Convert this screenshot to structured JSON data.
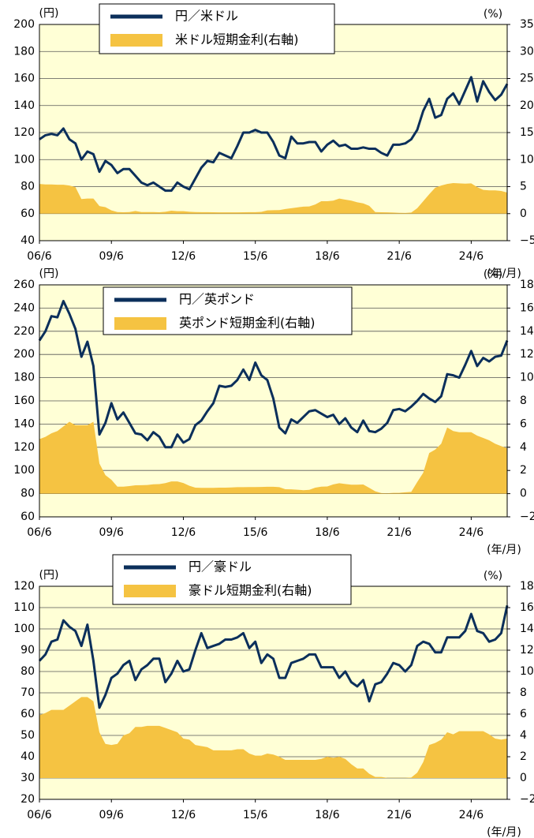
{
  "chart_data": [
    {
      "type": "line",
      "y_label": "(円)",
      "y2_label": "(%)",
      "x_label": "(年/月)",
      "legend": "upper center",
      "grid": true,
      "xlim": [
        "2006-06",
        "2025-12"
      ],
      "xticks": [
        {
          "value": "2006-06",
          "label": "06/6"
        },
        {
          "value": "2009-06",
          "label": "09/6"
        },
        {
          "value": "2012-06",
          "label": "12/6"
        },
        {
          "value": "2015-06",
          "label": "15/6"
        },
        {
          "value": "2018-06",
          "label": "18/6"
        },
        {
          "value": "2021-06",
          "label": "21/6"
        },
        {
          "value": "2024-06",
          "label": "24/6"
        }
      ],
      "ylim": [
        40,
        200
      ],
      "yticks": [
        40,
        60,
        80,
        100,
        120,
        140,
        160,
        180,
        200
      ],
      "y2lim": [
        -5,
        35
      ],
      "y2ticks": [
        {
          "value": -5,
          "label": "−5"
        },
        0,
        5,
        10,
        15,
        20,
        25,
        30,
        35
      ],
      "x": [
        "2006-06",
        "2006-09",
        "2006-12",
        "2007-03",
        "2007-06",
        "2007-09",
        "2007-12",
        "2008-03",
        "2008-06",
        "2008-09",
        "2008-12",
        "2009-03",
        "2009-06",
        "2009-09",
        "2009-12",
        "2010-03",
        "2010-06",
        "2010-09",
        "2010-12",
        "2011-03",
        "2011-06",
        "2011-09",
        "2011-12",
        "2012-03",
        "2012-06",
        "2012-09",
        "2012-12",
        "2013-03",
        "2013-06",
        "2013-09",
        "2013-12",
        "2014-03",
        "2014-06",
        "2014-09",
        "2014-12",
        "2015-03",
        "2015-06",
        "2015-09",
        "2015-12",
        "2016-03",
        "2016-06",
        "2016-09",
        "2016-12",
        "2017-03",
        "2017-06",
        "2017-09",
        "2017-12",
        "2018-03",
        "2018-06",
        "2018-09",
        "2018-12",
        "2019-03",
        "2019-06",
        "2019-09",
        "2019-12",
        "2020-03",
        "2020-06",
        "2020-09",
        "2020-12",
        "2021-03",
        "2021-06",
        "2021-09",
        "2021-12",
        "2022-03",
        "2022-06",
        "2022-09",
        "2022-12",
        "2023-03",
        "2023-06",
        "2023-09",
        "2023-12",
        "2024-03",
        "2024-06",
        "2024-09",
        "2024-12",
        "2025-03",
        "2025-06",
        "2025-09",
        "2025-12"
      ],
      "series": [
        {
          "name": "円／米ドル",
          "type": "line",
          "color": "#0b2f5b",
          "values": [
            115,
            118,
            119,
            118,
            123,
            115,
            112,
            100,
            106,
            104,
            91,
            99,
            96,
            90,
            93,
            93,
            88,
            83,
            81,
            83,
            80,
            77,
            77,
            83,
            80,
            78,
            86,
            94,
            99,
            98,
            105,
            103,
            101,
            110,
            120,
            120,
            122,
            120,
            120,
            113,
            103,
            101,
            117,
            112,
            112,
            113,
            113,
            106,
            111,
            114,
            110,
            111,
            108,
            108,
            109,
            108,
            108,
            105,
            103,
            111,
            111,
            112,
            115,
            122,
            136,
            145,
            131,
            133,
            145,
            149,
            141,
            151,
            161,
            143,
            158,
            150,
            144,
            148,
            156
          ]
        },
        {
          "name": "米ドル短期金利(右軸)",
          "type": "area",
          "axis": "y2",
          "color": "#f5c342",
          "values": [
            5.5,
            5.4,
            5.4,
            5.35,
            5.35,
            5.2,
            4.9,
            2.7,
            2.8,
            2.8,
            1.4,
            1.2,
            0.6,
            0.3,
            0.25,
            0.3,
            0.5,
            0.3,
            0.3,
            0.3,
            0.25,
            0.35,
            0.55,
            0.45,
            0.45,
            0.35,
            0.3,
            0.28,
            0.27,
            0.25,
            0.24,
            0.23,
            0.23,
            0.23,
            0.25,
            0.27,
            0.28,
            0.33,
            0.6,
            0.63,
            0.65,
            0.85,
            1.0,
            1.15,
            1.3,
            1.33,
            1.7,
            2.3,
            2.3,
            2.4,
            2.8,
            2.6,
            2.4,
            2.1,
            1.9,
            1.45,
            0.3,
            0.25,
            0.24,
            0.2,
            0.15,
            0.13,
            0.2,
            1.0,
            2.3,
            3.6,
            4.8,
            5.2,
            5.5,
            5.65,
            5.6,
            5.55,
            5.6,
            4.9,
            4.4,
            4.3,
            4.3,
            4.2,
            3.9
          ]
        }
      ]
    },
    {
      "type": "line",
      "y_label": "(円)",
      "y2_label": "(%)",
      "x_label": "(年/月)",
      "legend": "upper center",
      "grid": true,
      "xlim": [
        "2006-06",
        "2025-12"
      ],
      "xticks": [
        {
          "value": "2006-06",
          "label": "06/6"
        },
        {
          "value": "2009-06",
          "label": "09/6"
        },
        {
          "value": "2012-06",
          "label": "12/6"
        },
        {
          "value": "2015-06",
          "label": "15/6"
        },
        {
          "value": "2018-06",
          "label": "18/6"
        },
        {
          "value": "2021-06",
          "label": "21/6"
        },
        {
          "value": "2024-06",
          "label": "24/6"
        }
      ],
      "ylim": [
        60,
        260
      ],
      "yticks": [
        60,
        80,
        100,
        120,
        140,
        160,
        180,
        200,
        220,
        240,
        260
      ],
      "y2lim": [
        -2,
        18
      ],
      "y2ticks": [
        {
          "value": -2,
          "label": "−2"
        },
        0,
        2,
        4,
        6,
        8,
        10,
        12,
        14,
        16,
        18
      ],
      "x": [
        "2006-06",
        "2006-09",
        "2006-12",
        "2007-03",
        "2007-06",
        "2007-09",
        "2007-12",
        "2008-03",
        "2008-06",
        "2008-09",
        "2008-12",
        "2009-03",
        "2009-06",
        "2009-09",
        "2009-12",
        "2010-03",
        "2010-06",
        "2010-09",
        "2010-12",
        "2011-03",
        "2011-06",
        "2011-09",
        "2011-12",
        "2012-03",
        "2012-06",
        "2012-09",
        "2012-12",
        "2013-03",
        "2013-06",
        "2013-09",
        "2013-12",
        "2014-03",
        "2014-06",
        "2014-09",
        "2014-12",
        "2015-03",
        "2015-06",
        "2015-09",
        "2015-12",
        "2016-03",
        "2016-06",
        "2016-09",
        "2016-12",
        "2017-03",
        "2017-06",
        "2017-09",
        "2017-12",
        "2018-03",
        "2018-06",
        "2018-09",
        "2018-12",
        "2019-03",
        "2019-06",
        "2019-09",
        "2019-12",
        "2020-03",
        "2020-06",
        "2020-09",
        "2020-12",
        "2021-03",
        "2021-06",
        "2021-09",
        "2021-12",
        "2022-03",
        "2022-06",
        "2022-09",
        "2022-12",
        "2023-03",
        "2023-06",
        "2023-09",
        "2023-12",
        "2024-03",
        "2024-06",
        "2024-09",
        "2024-12",
        "2025-03",
        "2025-06",
        "2025-09",
        "2025-12"
      ],
      "series": [
        {
          "name": "円／英ポンド",
          "type": "line",
          "color": "#0b2f5b",
          "values": [
            212,
            220,
            233,
            232,
            246,
            235,
            222,
            198,
            211,
            190,
            131,
            141,
            158,
            144,
            150,
            141,
            132,
            131,
            126,
            133,
            129,
            120,
            120,
            131,
            124,
            127,
            139,
            143,
            151,
            158,
            173,
            172,
            173,
            178,
            187,
            178,
            193,
            182,
            178,
            162,
            137,
            132,
            144,
            141,
            146,
            151,
            152,
            149,
            146,
            148,
            140,
            145,
            137,
            133,
            143,
            134,
            133,
            136,
            141,
            152,
            153,
            151,
            155,
            160,
            166,
            162,
            159,
            164,
            183,
            182,
            180,
            191,
            203,
            190,
            197,
            194,
            198,
            199,
            212
          ]
        },
        {
          "name": "英ポンド短期金利(右軸)",
          "type": "area",
          "axis": "y2",
          "color": "#f5c342",
          "values": [
            4.7,
            4.9,
            5.2,
            5.4,
            5.8,
            6.2,
            5.9,
            5.9,
            5.9,
            6.2,
            2.6,
            1.6,
            1.2,
            0.6,
            0.6,
            0.65,
            0.72,
            0.73,
            0.75,
            0.81,
            0.82,
            0.91,
            1.05,
            1.05,
            0.92,
            0.68,
            0.52,
            0.5,
            0.5,
            0.5,
            0.52,
            0.52,
            0.53,
            0.56,
            0.56,
            0.57,
            0.57,
            0.58,
            0.59,
            0.59,
            0.56,
            0.38,
            0.37,
            0.34,
            0.3,
            0.33,
            0.52,
            0.6,
            0.62,
            0.8,
            0.9,
            0.83,
            0.77,
            0.77,
            0.79,
            0.5,
            0.2,
            0.05,
            0.03,
            0.07,
            0.07,
            0.12,
            0.15,
            1.0,
            1.8,
            3.5,
            3.8,
            4.3,
            5.7,
            5.4,
            5.3,
            5.3,
            5.3,
            5.0,
            4.8,
            4.6,
            4.3,
            4.1,
            3.9
          ]
        }
      ]
    },
    {
      "type": "line",
      "y_label": "(円)",
      "y2_label": "(%)",
      "x_label": "(年/月)",
      "legend": "upper center",
      "grid": true,
      "xlim": [
        "2006-06",
        "2025-12"
      ],
      "xticks": [
        {
          "value": "2006-06",
          "label": "06/6"
        },
        {
          "value": "2009-06",
          "label": "09/6"
        },
        {
          "value": "2012-06",
          "label": "12/6"
        },
        {
          "value": "2015-06",
          "label": "15/6"
        },
        {
          "value": "2018-06",
          "label": "18/6"
        },
        {
          "value": "2021-06",
          "label": "21/6"
        },
        {
          "value": "2024-06",
          "label": "24/6"
        }
      ],
      "ylim": [
        20,
        120
      ],
      "yticks": [
        20,
        30,
        40,
        50,
        60,
        70,
        80,
        90,
        100,
        110,
        120
      ],
      "y2lim": [
        -2,
        18
      ],
      "y2ticks": [
        {
          "value": -2,
          "label": "−2"
        },
        0,
        2,
        4,
        6,
        8,
        10,
        12,
        14,
        16,
        18
      ],
      "x": [
        "2006-06",
        "2006-09",
        "2006-12",
        "2007-03",
        "2007-06",
        "2007-09",
        "2007-12",
        "2008-03",
        "2008-06",
        "2008-09",
        "2008-12",
        "2009-03",
        "2009-06",
        "2009-09",
        "2009-12",
        "2010-03",
        "2010-06",
        "2010-09",
        "2010-12",
        "2011-03",
        "2011-06",
        "2011-09",
        "2011-12",
        "2012-03",
        "2012-06",
        "2012-09",
        "2012-12",
        "2013-03",
        "2013-06",
        "2013-09",
        "2013-12",
        "2014-03",
        "2014-06",
        "2014-09",
        "2014-12",
        "2015-03",
        "2015-06",
        "2015-09",
        "2015-12",
        "2016-03",
        "2016-06",
        "2016-09",
        "2016-12",
        "2017-03",
        "2017-06",
        "2017-09",
        "2017-12",
        "2018-03",
        "2018-06",
        "2018-09",
        "2018-12",
        "2019-03",
        "2019-06",
        "2019-09",
        "2019-12",
        "2020-03",
        "2020-06",
        "2020-09",
        "2020-12",
        "2021-03",
        "2021-06",
        "2021-09",
        "2021-12",
        "2022-03",
        "2022-06",
        "2022-09",
        "2022-12",
        "2023-03",
        "2023-06",
        "2023-09",
        "2023-12",
        "2024-03",
        "2024-06",
        "2024-09",
        "2024-12",
        "2025-03",
        "2025-06",
        "2025-09",
        "2025-12"
      ],
      "series": [
        {
          "name": "円／豪ドル",
          "type": "line",
          "color": "#0b2f5b",
          "values": [
            85,
            88,
            94,
            95,
            104,
            101,
            99,
            92,
            102,
            85,
            63,
            69,
            77,
            79,
            83,
            85,
            76,
            81,
            83,
            86,
            86,
            75,
            79,
            85,
            80,
            81,
            90,
            98,
            91,
            92,
            93,
            95,
            95,
            96,
            98,
            91,
            94,
            84,
            88,
            86,
            77,
            77,
            84,
            85,
            86,
            88,
            88,
            82,
            82,
            82,
            77,
            80,
            75,
            73,
            76,
            66,
            74,
            75,
            79,
            84,
            83,
            80,
            83,
            92,
            94,
            93,
            89,
            89,
            96,
            96,
            96,
            99,
            107,
            99,
            98,
            94,
            95,
            98,
            111
          ]
        },
        {
          "name": "豪ドル短期金利(右軸)",
          "type": "area",
          "axis": "y2",
          "color": "#f5c342",
          "values": [
            5.9,
            6.1,
            6.4,
            6.4,
            6.4,
            6.8,
            7.2,
            7.6,
            7.6,
            7.2,
            4.3,
            3.2,
            3.1,
            3.2,
            4.0,
            4.2,
            4.8,
            4.8,
            4.9,
            4.9,
            4.9,
            4.7,
            4.5,
            4.3,
            3.7,
            3.6,
            3.1,
            3.0,
            2.9,
            2.6,
            2.6,
            2.6,
            2.6,
            2.7,
            2.7,
            2.3,
            2.1,
            2.1,
            2.3,
            2.2,
            2.0,
            1.7,
            1.7,
            1.7,
            1.7,
            1.7,
            1.7,
            1.8,
            2.0,
            1.9,
            2.0,
            1.8,
            1.3,
            0.9,
            0.9,
            0.4,
            0.1,
            0.1,
            0.02,
            0.02,
            0.02,
            0.02,
            0.05,
            0.5,
            1.5,
            3.1,
            3.3,
            3.6,
            4.3,
            4.1,
            4.4,
            4.4,
            4.4,
            4.4,
            4.4,
            4.1,
            3.7,
            3.6,
            3.7
          ]
        }
      ]
    }
  ]
}
